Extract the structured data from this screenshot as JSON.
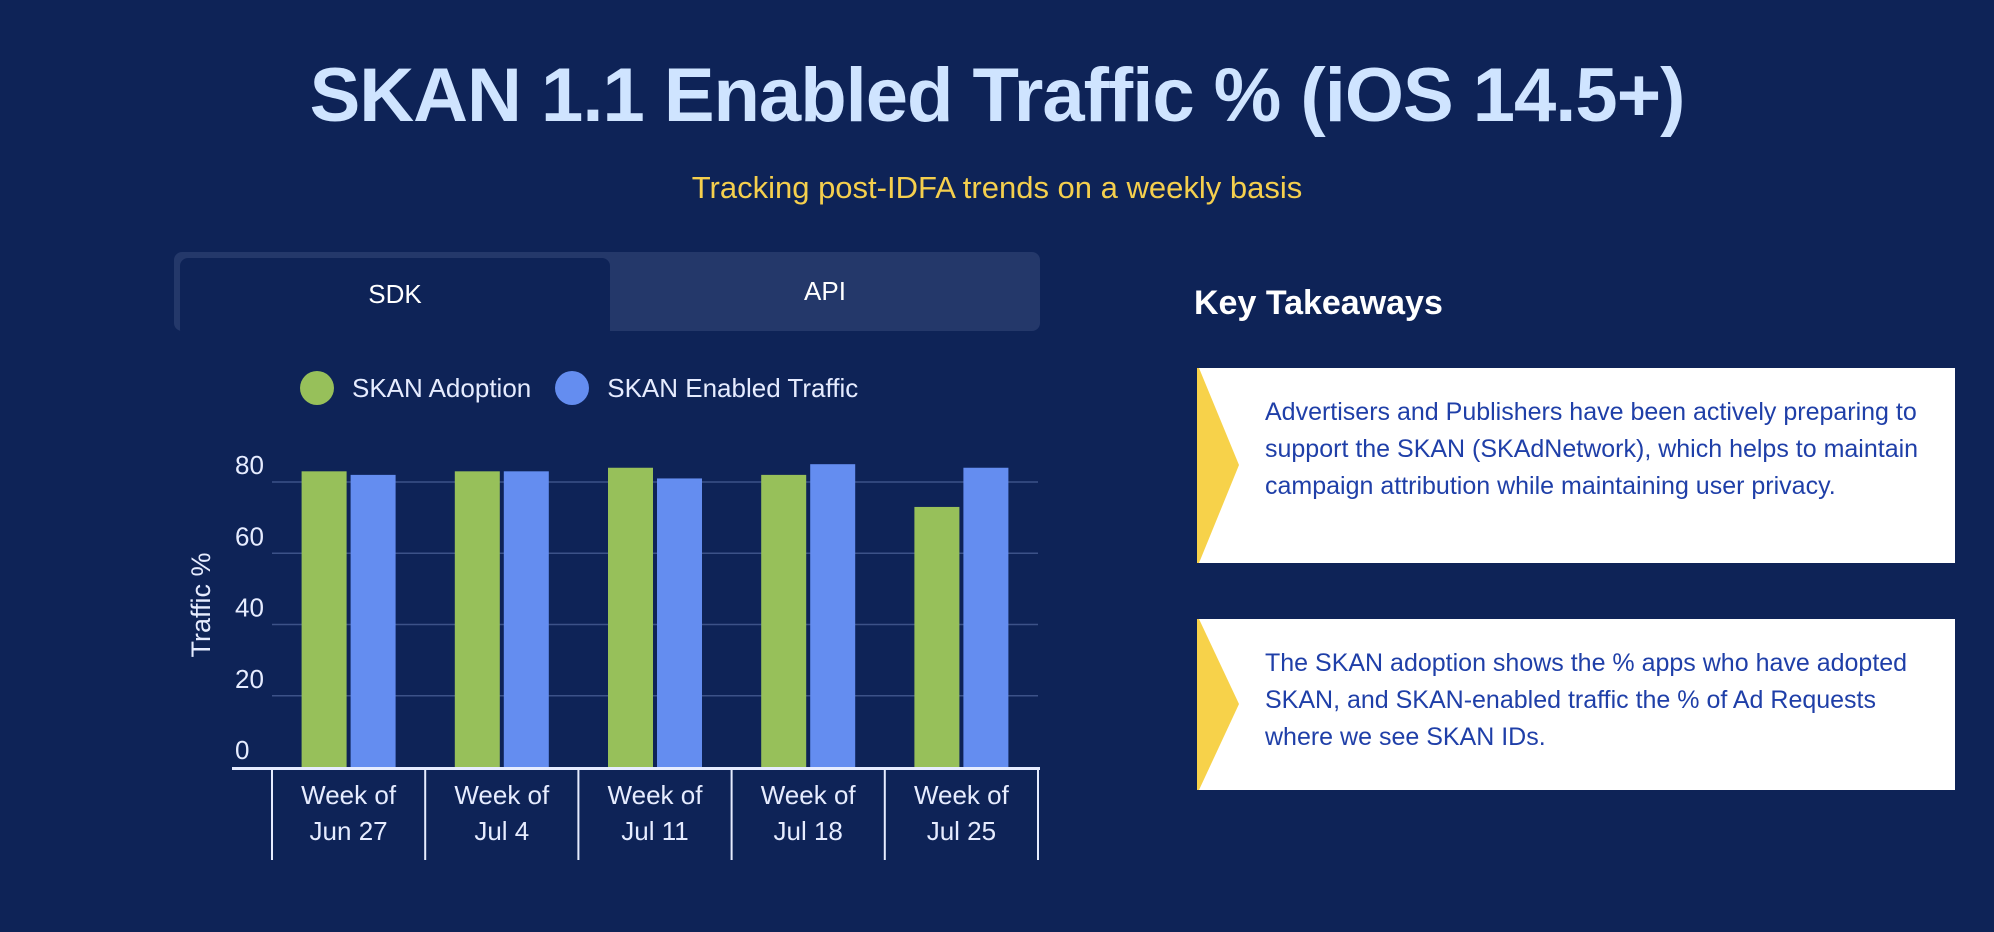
{
  "header": {
    "title": "SKAN 1.1 Enabled Traffic % (iOS 14.5+)",
    "subtitle": "Tracking post-IDFA trends on a weekly basis"
  },
  "tabs": [
    {
      "label": "SDK",
      "active": true
    },
    {
      "label": "API",
      "active": false
    }
  ],
  "legend": [
    {
      "label": "SKAN Adoption",
      "color": "#97c05a"
    },
    {
      "label": "SKAN Enabled Traffic",
      "color": "#648df0"
    }
  ],
  "chart_data": {
    "type": "bar",
    "categories": [
      [
        "Week of",
        "Jun 27"
      ],
      [
        "Week of",
        "Jul 4"
      ],
      [
        "Week of",
        "Jul 11"
      ],
      [
        "Week of",
        "Jul 18"
      ],
      [
        "Week of",
        "Jul 25"
      ]
    ],
    "series": [
      {
        "name": "SKAN Adoption",
        "color": "#97c05a",
        "values": [
          83,
          83,
          84,
          82,
          73
        ]
      },
      {
        "name": "SKAN Enabled Traffic",
        "color": "#648df0",
        "values": [
          82,
          83,
          81,
          85,
          84
        ]
      }
    ],
    "ylabel": "Traffic %",
    "yticks": [
      0,
      20,
      40,
      60,
      80
    ],
    "ylim": [
      0,
      80
    ],
    "grid": true
  },
  "takeaways": {
    "title": "Key Takeaways",
    "accent": "#f7d24a",
    "items": [
      {
        "text": "Advertisers and Publishers have been actively preparing to support the SKAN (SKAdNetwork), which helps to maintain campaign attribution while maintaining user privacy."
      },
      {
        "text": "The SKAN adoption shows the % apps who have adopted SKAN, and SKAN-enabled traffic the % of Ad Requests where we see SKAN IDs."
      }
    ]
  }
}
